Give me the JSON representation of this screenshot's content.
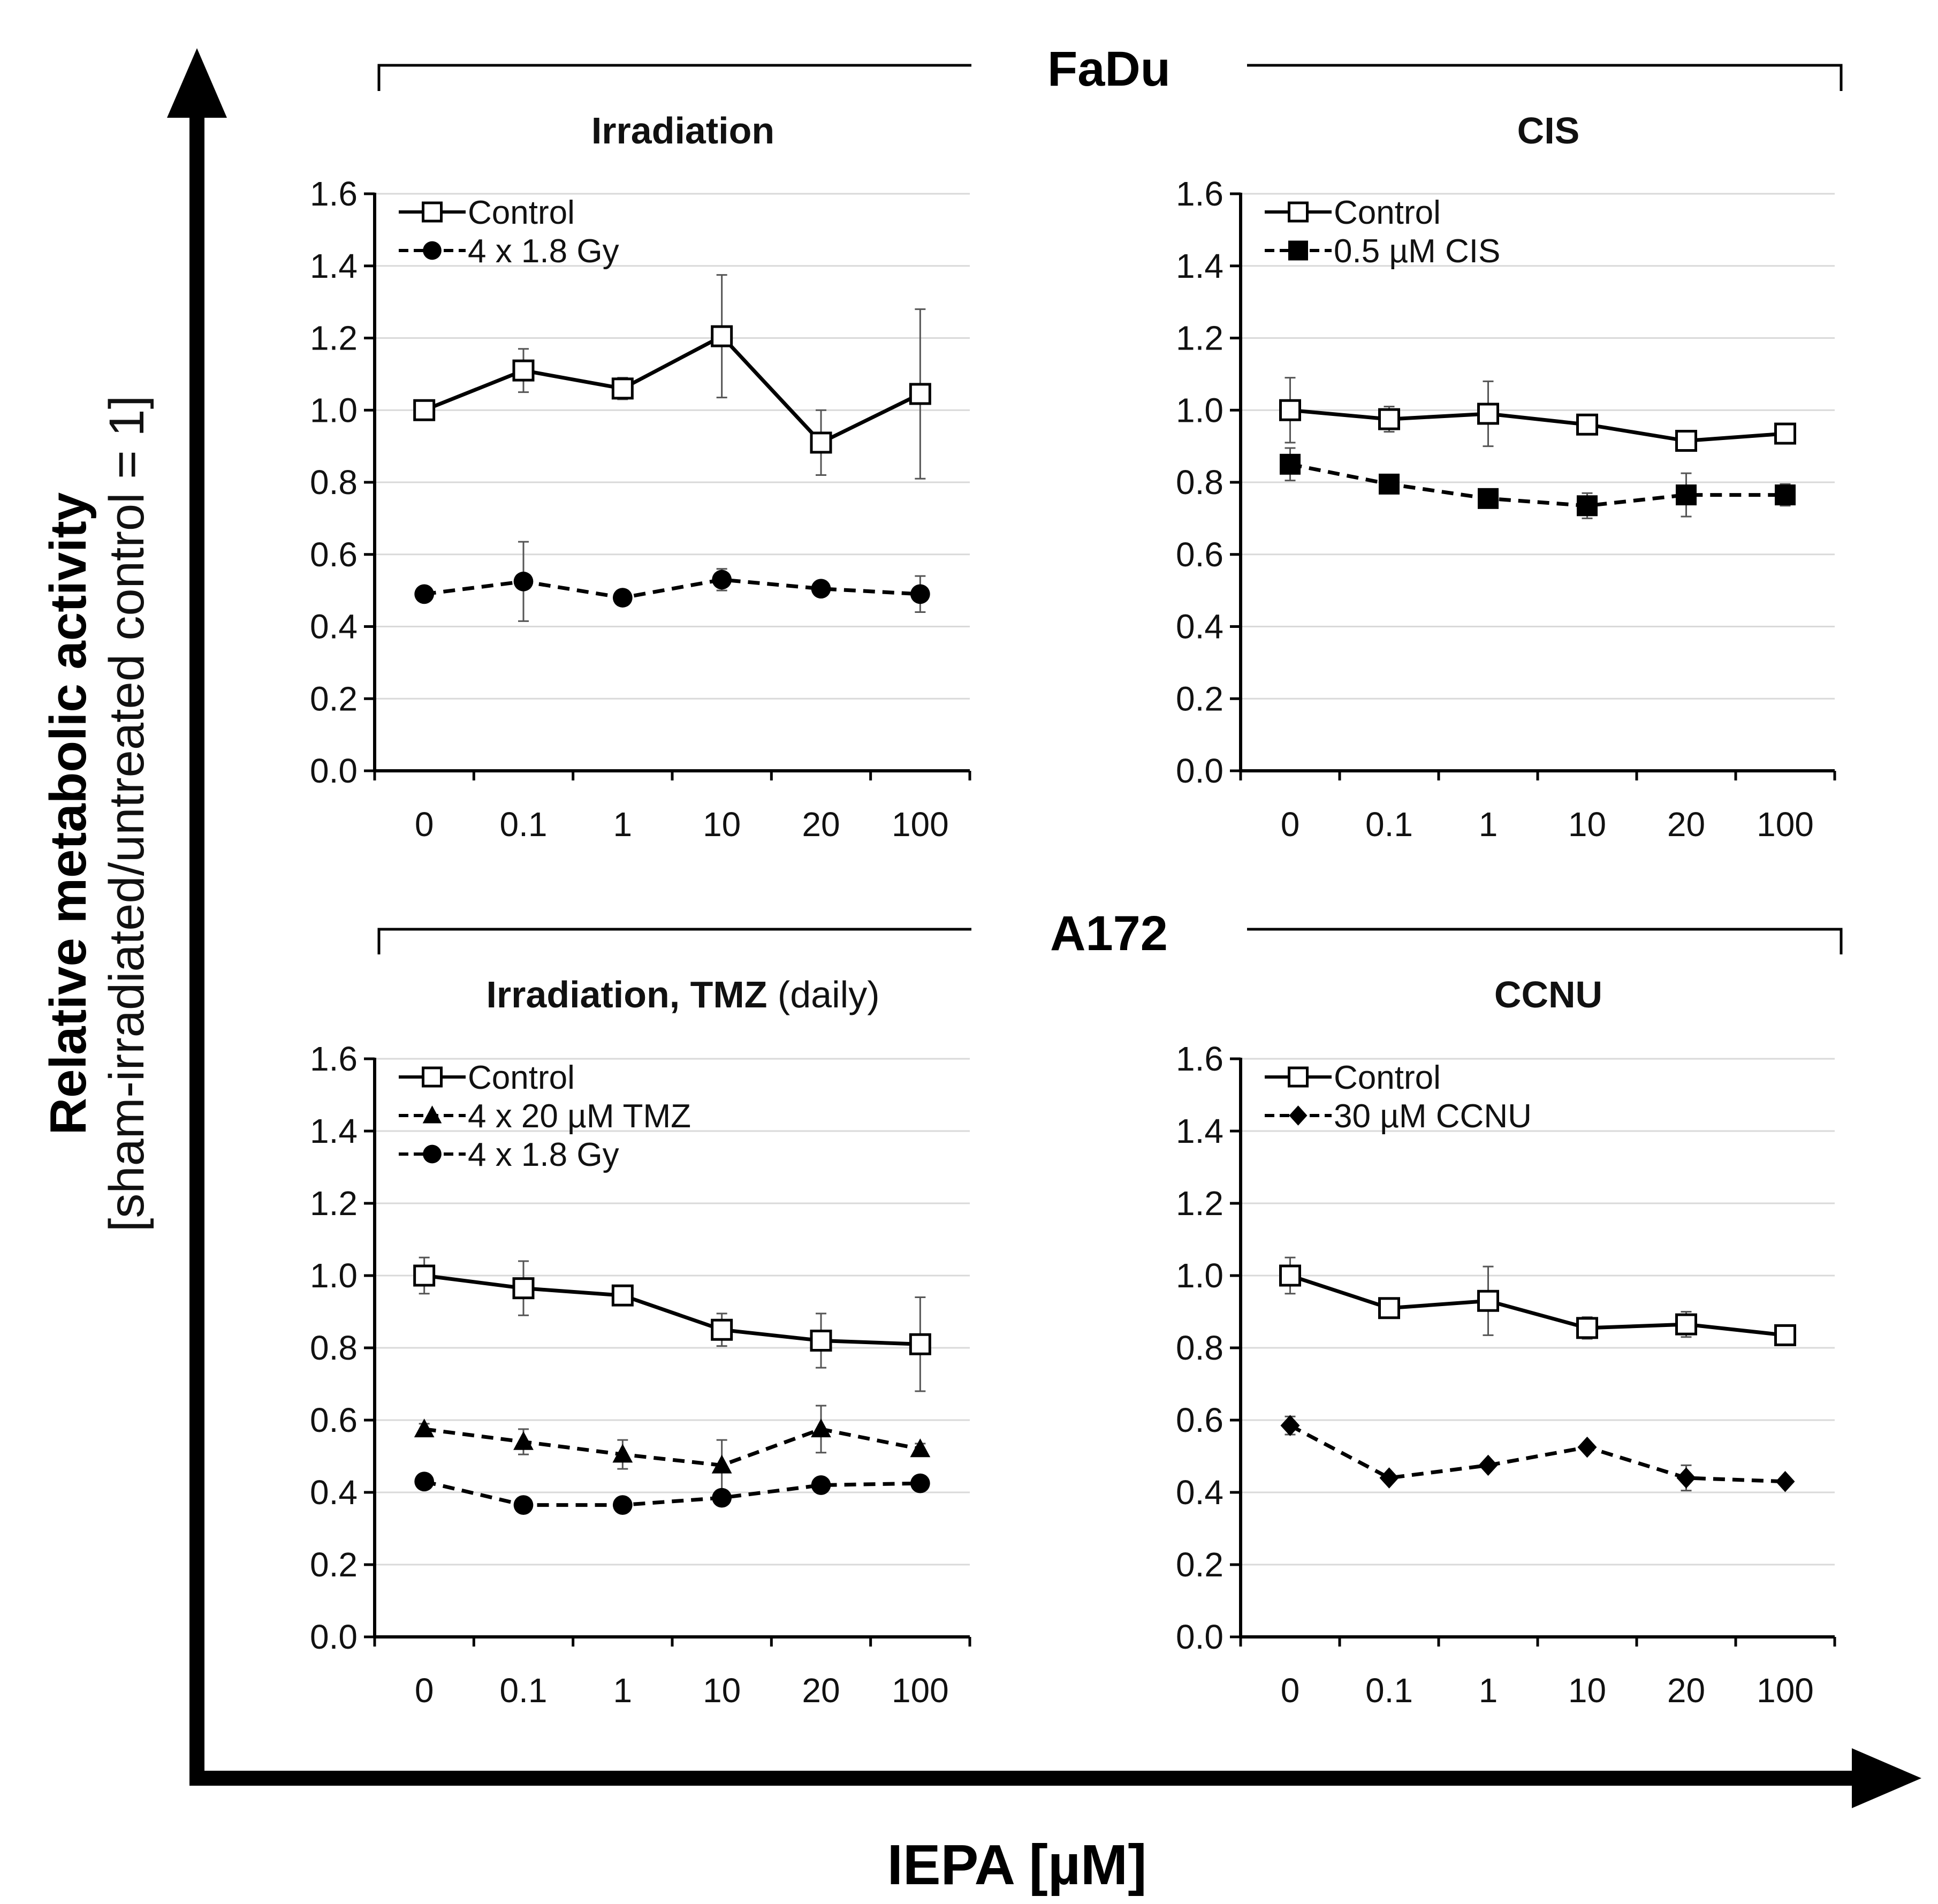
{
  "figure": {
    "y_axis_label_main": "Relative metabolic activity",
    "y_axis_label_sub": "[sham-irradiated/untreated control = 1]",
    "x_axis_label": "IEPA [µM]",
    "group_labels": [
      "FaDu",
      "A172"
    ]
  },
  "chart_data": [
    {
      "type": "line",
      "group": "FaDu",
      "title": "Irradiation",
      "title_suffix": "",
      "categories": [
        "0",
        "0.1",
        "1",
        "10",
        "20",
        "100"
      ],
      "ylim": [
        0,
        1.6
      ],
      "yticks": [
        "0.0",
        "0.2",
        "0.4",
        "0.6",
        "0.8",
        "1.0",
        "1.2",
        "1.4",
        "1.6"
      ],
      "grid": true,
      "legend_position": "top-left",
      "series": [
        {
          "name": "Control",
          "marker": "square-open",
          "dashed": false,
          "values": [
            1.0,
            1.11,
            1.06,
            1.205,
            0.91,
            1.045
          ],
          "errors": [
            0.01,
            0.06,
            0.03,
            0.17,
            0.09,
            0.235
          ]
        },
        {
          "name": "4 x 1.8 Gy",
          "marker": "circle",
          "dashed": true,
          "values": [
            0.49,
            0.525,
            0.48,
            0.53,
            0.505,
            0.49
          ],
          "errors": [
            0.02,
            0.11,
            0.015,
            0.03,
            0.015,
            0.05
          ]
        }
      ]
    },
    {
      "type": "line",
      "group": "FaDu",
      "title": "CIS",
      "title_suffix": "",
      "categories": [
        "0",
        "0.1",
        "1",
        "10",
        "20",
        "100"
      ],
      "ylim": [
        0,
        1.6
      ],
      "yticks": [
        "0.0",
        "0.2",
        "0.4",
        "0.6",
        "0.8",
        "1.0",
        "1.2",
        "1.4",
        "1.6"
      ],
      "grid": true,
      "legend_position": "top-left",
      "series": [
        {
          "name": "Control",
          "marker": "square-open",
          "dashed": false,
          "values": [
            1.0,
            0.975,
            0.99,
            0.96,
            0.915,
            0.935
          ],
          "errors": [
            0.09,
            0.035,
            0.09,
            0.02,
            0.015,
            0.015
          ]
        },
        {
          "name": "0.5 µM CIS",
          "marker": "square-filled",
          "dashed": true,
          "values": [
            0.85,
            0.795,
            0.755,
            0.735,
            0.765,
            0.765
          ],
          "errors": [
            0.045,
            0.015,
            0.02,
            0.035,
            0.06,
            0.03
          ]
        }
      ]
    },
    {
      "type": "line",
      "group": "A172",
      "title": "Irradiation, TMZ",
      "title_suffix": "(daily)",
      "categories": [
        "0",
        "0.1",
        "1",
        "10",
        "20",
        "100"
      ],
      "ylim": [
        0,
        1.6
      ],
      "yticks": [
        "0.0",
        "0.2",
        "0.4",
        "0.6",
        "0.8",
        "1.0",
        "1.2",
        "1.4",
        "1.6"
      ],
      "grid": true,
      "legend_position": "top-left",
      "series": [
        {
          "name": "Control",
          "marker": "square-open",
          "dashed": false,
          "values": [
            1.0,
            0.965,
            0.945,
            0.85,
            0.82,
            0.81
          ],
          "errors": [
            0.05,
            0.075,
            0.015,
            0.045,
            0.075,
            0.13
          ]
        },
        {
          "name": "4 x 20 µM TMZ",
          "marker": "triangle",
          "dashed": true,
          "values": [
            0.575,
            0.54,
            0.505,
            0.475,
            0.575,
            0.52
          ],
          "errors": [
            0.015,
            0.035,
            0.04,
            0.07,
            0.065,
            0.015
          ]
        },
        {
          "name": "4 x 1.8 Gy",
          "marker": "circle",
          "dashed": true,
          "values": [
            0.43,
            0.365,
            0.365,
            0.385,
            0.42,
            0.425
          ],
          "errors": [
            0.01,
            0.01,
            0.01,
            0.01,
            0.01,
            0.01
          ]
        }
      ]
    },
    {
      "type": "line",
      "group": "A172",
      "title": "CCNU",
      "title_suffix": "",
      "categories": [
        "0",
        "0.1",
        "1",
        "10",
        "20",
        "100"
      ],
      "ylim": [
        0,
        1.6
      ],
      "yticks": [
        "0.0",
        "0.2",
        "0.4",
        "0.6",
        "0.8",
        "1.0",
        "1.2",
        "1.4",
        "1.6"
      ],
      "grid": true,
      "legend_position": "top-left",
      "series": [
        {
          "name": "Control",
          "marker": "square-open",
          "dashed": false,
          "values": [
            1.0,
            0.91,
            0.93,
            0.855,
            0.865,
            0.835
          ],
          "errors": [
            0.05,
            0.025,
            0.095,
            0.03,
            0.035,
            0.025
          ]
        },
        {
          "name": "30 µM CCNU",
          "marker": "diamond",
          "dashed": true,
          "values": [
            0.585,
            0.44,
            0.475,
            0.525,
            0.44,
            0.43
          ],
          "errors": [
            0.025,
            0.01,
            0.01,
            0.01,
            0.035,
            0.01
          ]
        }
      ]
    }
  ]
}
